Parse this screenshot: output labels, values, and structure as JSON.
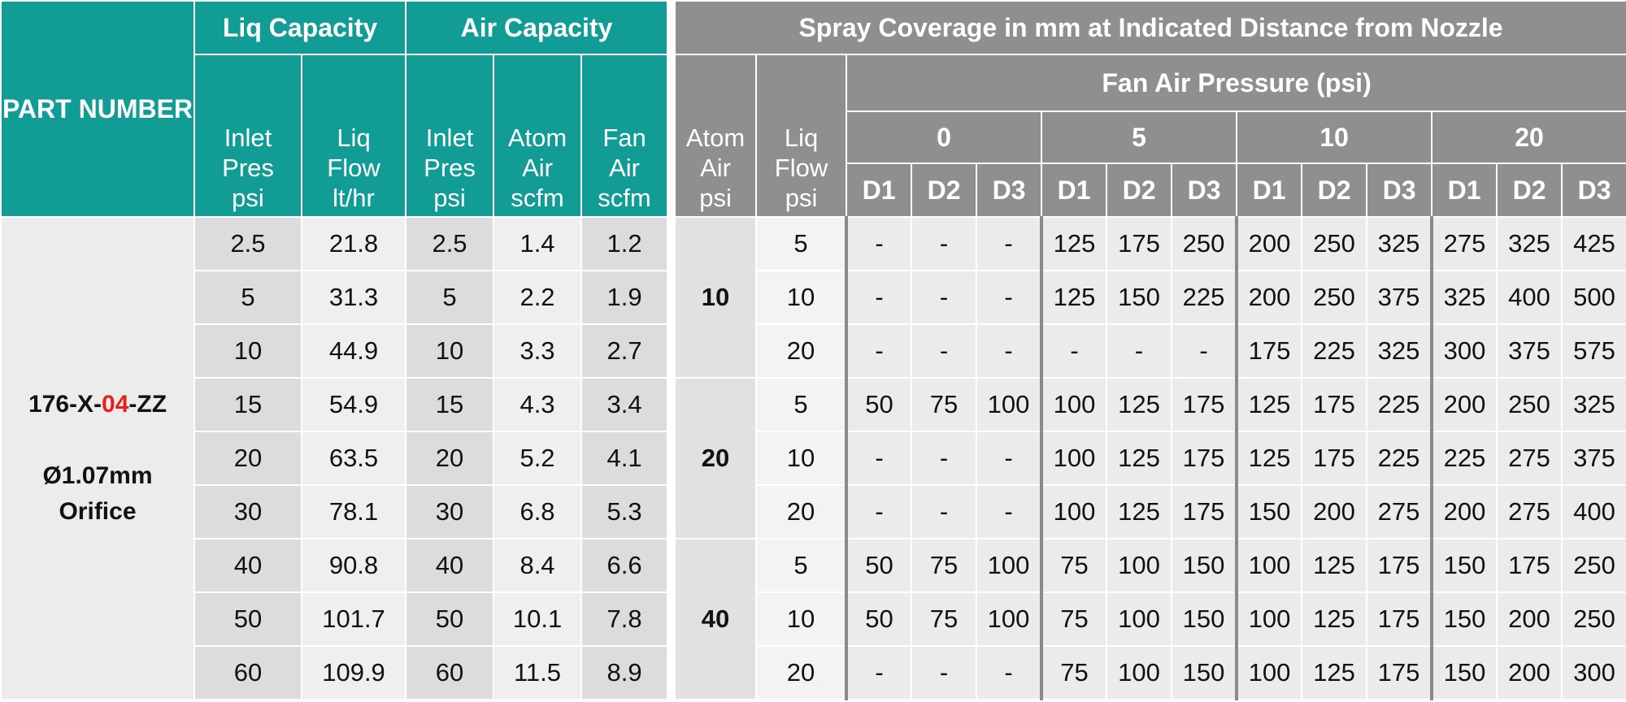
{
  "header": {
    "part_number": "PART NUMBER",
    "liq_capacity": "Liq Capacity",
    "air_capacity": "Air Capacity",
    "spray_coverage": "Spray Coverage in mm at Indicated Distance from Nozzle",
    "left_columns": [
      [
        "Inlet",
        "Pres",
        "psi"
      ],
      [
        "Liq",
        "Flow",
        "lt/hr"
      ],
      [
        "Inlet",
        "Pres",
        "psi"
      ],
      [
        "Atom",
        "Air",
        "scfm"
      ],
      [
        "Fan",
        "Air",
        "scfm"
      ]
    ],
    "atom_air": [
      "Atom",
      "Air",
      "psi"
    ],
    "liq_flow": [
      "Liq",
      "Flow",
      "psi"
    ],
    "fan_air_pressure": "Fan Air Pressure (psi)",
    "fan_pressures": [
      "0",
      "5",
      "10",
      "20"
    ],
    "distances": [
      "D1",
      "D2",
      "D3"
    ]
  },
  "part": {
    "prefix": "176-X-",
    "code": "04",
    "suffix": "-ZZ",
    "orifice": [
      "Ø1.07mm",
      "Orifice"
    ]
  },
  "capacity_rows": [
    [
      2.5,
      21.8,
      2.5,
      1.4,
      1.2
    ],
    [
      5,
      31.3,
      5,
      2.2,
      1.9
    ],
    [
      10,
      44.9,
      10,
      3.3,
      2.7
    ],
    [
      15,
      54.9,
      15,
      4.3,
      3.4
    ],
    [
      20,
      63.5,
      20,
      5.2,
      4.1
    ],
    [
      30,
      78.1,
      30,
      6.8,
      5.3
    ],
    [
      40,
      90.8,
      40,
      8.4,
      6.6
    ],
    [
      50,
      101.7,
      50,
      10.1,
      7.8
    ],
    [
      60,
      109.9,
      60,
      11.5,
      8.9
    ]
  ],
  "coverage_groups": [
    {
      "atom_air": 10,
      "rows": [
        {
          "liq_flow": 5,
          "coverage": [
            "-",
            "-",
            "-",
            125,
            175,
            250,
            200,
            250,
            325,
            275,
            325,
            425
          ]
        },
        {
          "liq_flow": 10,
          "coverage": [
            "-",
            "-",
            "-",
            125,
            150,
            225,
            200,
            250,
            375,
            325,
            400,
            500
          ]
        },
        {
          "liq_flow": 20,
          "coverage": [
            "-",
            "-",
            "-",
            "-",
            "-",
            "-",
            175,
            225,
            325,
            300,
            375,
            575
          ]
        }
      ]
    },
    {
      "atom_air": 20,
      "rows": [
        {
          "liq_flow": 5,
          "coverage": [
            50,
            75,
            100,
            100,
            125,
            175,
            125,
            175,
            225,
            200,
            250,
            325
          ]
        },
        {
          "liq_flow": 10,
          "coverage": [
            "-",
            "-",
            "-",
            100,
            125,
            175,
            125,
            175,
            225,
            225,
            275,
            375
          ]
        },
        {
          "liq_flow": 20,
          "coverage": [
            "-",
            "-",
            "-",
            100,
            125,
            175,
            150,
            200,
            275,
            200,
            275,
            400
          ]
        }
      ]
    },
    {
      "atom_air": 40,
      "rows": [
        {
          "liq_flow": 5,
          "coverage": [
            50,
            75,
            100,
            75,
            100,
            150,
            100,
            125,
            175,
            150,
            175,
            250
          ]
        },
        {
          "liq_flow": 10,
          "coverage": [
            50,
            75,
            100,
            75,
            100,
            150,
            100,
            125,
            175,
            150,
            200,
            250
          ]
        },
        {
          "liq_flow": 20,
          "coverage": [
            "-",
            "-",
            "-",
            75,
            100,
            150,
            100,
            125,
            175,
            150,
            200,
            300
          ]
        }
      ]
    }
  ]
}
